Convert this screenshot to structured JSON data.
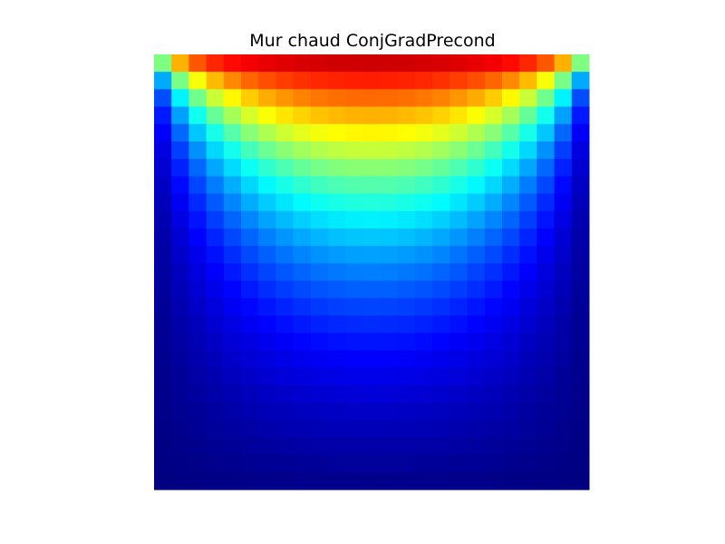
{
  "chart_data": {
    "type": "heatmap",
    "title": "Mur chaud ConjGradPrecond",
    "xlabel": "",
    "ylabel": "",
    "grid_size": 25,
    "colormap": "jet",
    "value_range": [
      0,
      1
    ],
    "boundary": "hot top wall, cold other walls",
    "axes_visible": false
  }
}
